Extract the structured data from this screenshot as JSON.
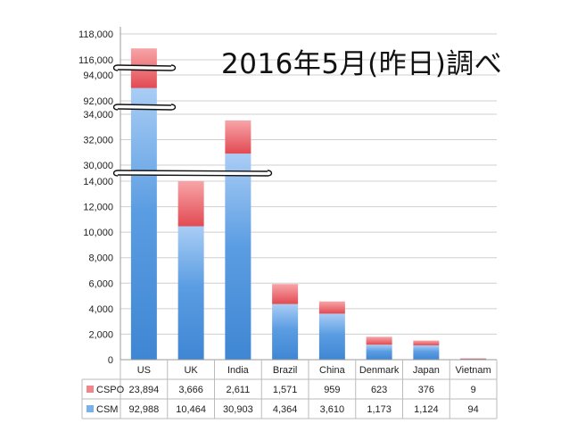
{
  "chart_data": {
    "type": "bar",
    "stacked": true,
    "title": "2016年5月(昨日)調べ",
    "categories": [
      "US",
      "UK",
      "India",
      "Brazil",
      "China",
      "Denmark",
      "Japan",
      "Vietnam"
    ],
    "series": [
      {
        "name": "CSM",
        "values": [
          92988,
          10464,
          30903,
          4364,
          3610,
          1173,
          1124,
          94
        ]
      },
      {
        "name": "CSPO",
        "values": [
          23894,
          3666,
          2611,
          1571,
          959,
          623,
          376,
          9
        ]
      }
    ],
    "table": {
      "CSPO": [
        "23,894",
        "3,666",
        "2,611",
        "1,571",
        "959",
        "623",
        "376",
        "9"
      ],
      "CSM": [
        "92,988",
        "10,464",
        "30,903",
        "4,364",
        "3,610",
        "1,173",
        "1,124",
        "94"
      ]
    },
    "y_axis": {
      "broken": true,
      "segments": [
        {
          "range": [
            0,
            14000
          ],
          "ticks": [
            0,
            2000,
            4000,
            6000,
            8000,
            10000,
            12000,
            14000
          ]
        },
        {
          "range": [
            30000,
            34000
          ],
          "ticks": [
            30000,
            32000,
            34000
          ]
        },
        {
          "range": [
            92000,
            94000
          ],
          "ticks": [
            92000,
            94000
          ]
        },
        {
          "range": [
            116000,
            118000
          ],
          "ticks": [
            116000,
            118000
          ]
        }
      ],
      "tick_labels": [
        "0",
        "2,000",
        "4,000",
        "6,000",
        "8,000",
        "10,000",
        "12,000",
        "14,000",
        "30,000",
        "32,000",
        "34,000",
        "92,000",
        "94,000",
        "116,000",
        "118,000"
      ]
    },
    "grid": true,
    "legend": "data-table-left",
    "colors": {
      "CSM": "#4a90d9",
      "CSPO": "#e8474f"
    }
  }
}
